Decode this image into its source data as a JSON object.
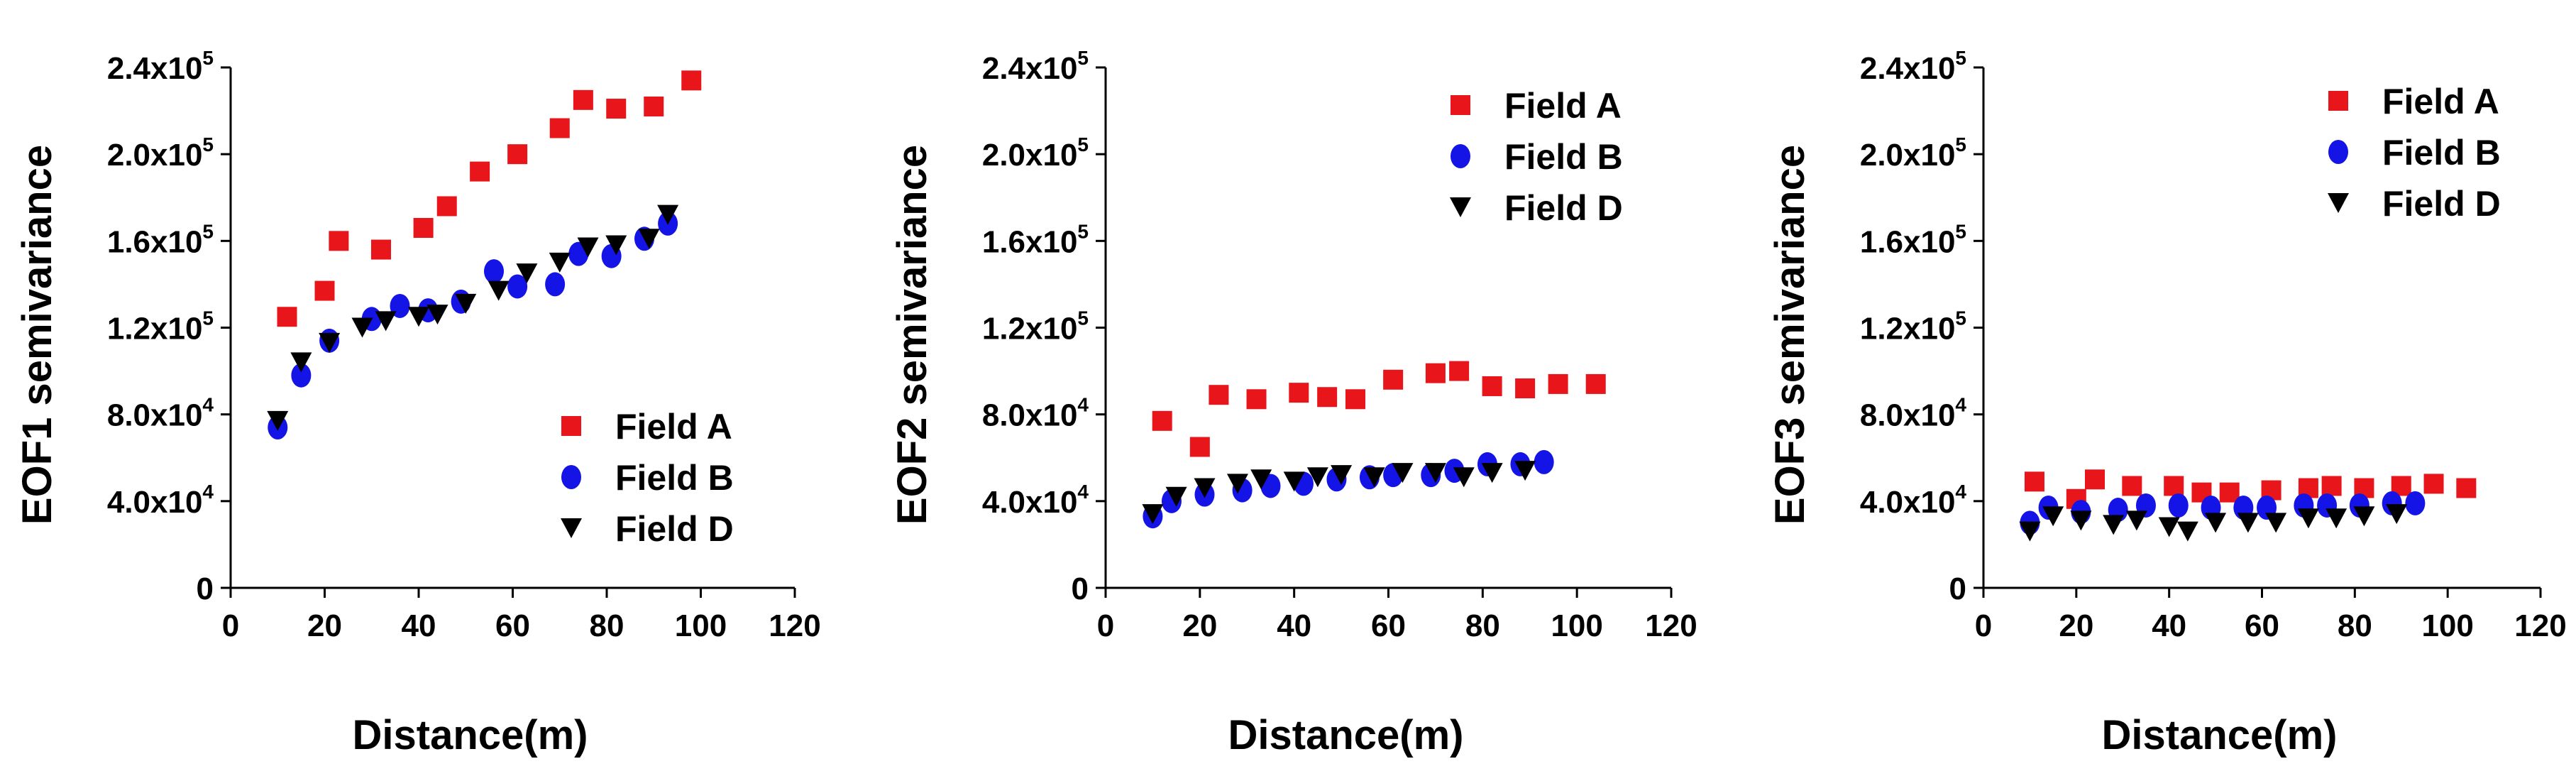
{
  "colors": {
    "field_a": "#e8161b",
    "field_b": "#1414e6",
    "field_d": "#000000",
    "axis": "#000000"
  },
  "chart_data": [
    {
      "type": "scatter",
      "xlabel": "Distance(m)",
      "ylabel": "EOF1 semivariance",
      "xlim": [
        0,
        120
      ],
      "ylim": [
        0,
        240000
      ],
      "xticks": [
        "0",
        "20",
        "40",
        "60",
        "80",
        "100",
        "120"
      ],
      "yticks": [
        {
          "base": "0",
          "exp": ""
        },
        {
          "base": "4.0x10",
          "exp": "4"
        },
        {
          "base": "8.0x10",
          "exp": "4"
        },
        {
          "base": "1.2x10",
          "exp": "5"
        },
        {
          "base": "1.6x10",
          "exp": "5"
        },
        {
          "base": "2.0x10",
          "exp": "5"
        },
        {
          "base": "2.4x10",
          "exp": "5"
        }
      ],
      "legend_position": "bottom-right",
      "series": [
        {
          "name": "Field A",
          "marker": "square",
          "color_key": "field_a",
          "x": [
            12,
            20,
            23,
            32,
            41,
            46,
            53,
            61,
            70,
            75,
            82,
            90,
            98
          ],
          "y": [
            125000,
            137000,
            160000,
            156000,
            166000,
            176000,
            192000,
            200000,
            212000,
            225000,
            221000,
            222000,
            234000
          ]
        },
        {
          "name": "Field B",
          "marker": "circle",
          "color_key": "field_b",
          "x": [
            10,
            15,
            21,
            30,
            36,
            42,
            49,
            56,
            61,
            69,
            74,
            81,
            88,
            93
          ],
          "y": [
            74000,
            98000,
            114000,
            124000,
            130000,
            128000,
            132000,
            146000,
            139000,
            140000,
            154000,
            153000,
            161000,
            168000
          ]
        },
        {
          "name": "Field D",
          "marker": "triangle-down",
          "color_key": "field_d",
          "x": [
            10,
            15,
            21,
            28,
            33,
            40,
            44,
            50,
            57,
            63,
            70,
            76,
            82,
            89,
            93
          ],
          "y": [
            77000,
            104000,
            113000,
            120000,
            123000,
            125000,
            126000,
            131000,
            137000,
            145000,
            150000,
            157000,
            158000,
            161000,
            172000
          ]
        }
      ]
    },
    {
      "type": "scatter",
      "xlabel": "Distance(m)",
      "ylabel": "EOF2 semivariance",
      "xlim": [
        0,
        120
      ],
      "ylim": [
        0,
        240000
      ],
      "xticks": [
        "0",
        "20",
        "40",
        "60",
        "80",
        "100",
        "120"
      ],
      "yticks": [
        {
          "base": "0",
          "exp": ""
        },
        {
          "base": "4.0x10",
          "exp": "4"
        },
        {
          "base": "8.0x10",
          "exp": "4"
        },
        {
          "base": "1.2x10",
          "exp": "5"
        },
        {
          "base": "1.6x10",
          "exp": "5"
        },
        {
          "base": "2.0x10",
          "exp": "5"
        },
        {
          "base": "2.4x10",
          "exp": "5"
        }
      ],
      "legend_position": "top-right",
      "series": [
        {
          "name": "Field A",
          "marker": "square",
          "color_key": "field_a",
          "x": [
            12,
            20,
            24,
            32,
            41,
            47,
            53,
            61,
            70,
            75,
            82,
            89,
            96,
            104
          ],
          "y": [
            77000,
            65000,
            89000,
            87000,
            90000,
            88000,
            87000,
            96000,
            99000,
            100000,
            93000,
            92000,
            94000,
            94000
          ]
        },
        {
          "name": "Field B",
          "marker": "circle",
          "color_key": "field_b",
          "x": [
            10,
            14,
            21,
            29,
            35,
            42,
            49,
            56,
            61,
            69,
            74,
            81,
            88,
            93
          ],
          "y": [
            33000,
            40000,
            43000,
            45000,
            47000,
            48000,
            50000,
            51000,
            52000,
            52000,
            54000,
            57000,
            57000,
            58000
          ]
        },
        {
          "name": "Field D",
          "marker": "triangle-down",
          "color_key": "field_d",
          "x": [
            10,
            15,
            21,
            28,
            33,
            40,
            45,
            50,
            57,
            63,
            70,
            76,
            82,
            89
          ],
          "y": [
            34000,
            42000,
            46000,
            48000,
            50000,
            49000,
            51000,
            52000,
            51000,
            53000,
            53000,
            51000,
            53000,
            54000
          ]
        }
      ]
    },
    {
      "type": "scatter",
      "xlabel": "Distance(m)",
      "ylabel": "EOF3 semivariance",
      "xlim": [
        0,
        120
      ],
      "ylim": [
        0,
        240000
      ],
      "xticks": [
        "0",
        "20",
        "40",
        "60",
        "80",
        "100",
        "120"
      ],
      "yticks": [
        {
          "base": "0",
          "exp": ""
        },
        {
          "base": "4.0x10",
          "exp": "4"
        },
        {
          "base": "8.0x10",
          "exp": "4"
        },
        {
          "base": "1.2x10",
          "exp": "5"
        },
        {
          "base": "1.6x10",
          "exp": "5"
        },
        {
          "base": "2.0x10",
          "exp": "5"
        },
        {
          "base": "2.4x10",
          "exp": "5"
        }
      ],
      "legend_position": "top-right",
      "series": [
        {
          "name": "Field A",
          "marker": "square",
          "color_key": "field_a",
          "x": [
            11,
            20,
            24,
            32,
            41,
            47,
            53,
            62,
            70,
            75,
            82,
            90,
            97,
            104
          ],
          "y": [
            49000,
            41000,
            50000,
            47000,
            47000,
            44000,
            44000,
            45000,
            46000,
            47000,
            46000,
            47000,
            48000,
            46000
          ]
        },
        {
          "name": "Field B",
          "marker": "circle",
          "color_key": "field_b",
          "x": [
            10,
            14,
            21,
            29,
            35,
            42,
            49,
            56,
            61,
            69,
            74,
            81,
            88,
            93
          ],
          "y": [
            30000,
            37000,
            35000,
            36000,
            38000,
            38000,
            37000,
            37000,
            37000,
            38000,
            38000,
            38000,
            39000,
            39000
          ]
        },
        {
          "name": "Field D",
          "marker": "triangle-down",
          "color_key": "field_d",
          "x": [
            10,
            15,
            21,
            28,
            33,
            40,
            44,
            50,
            57,
            63,
            70,
            76,
            82,
            89
          ],
          "y": [
            26000,
            33000,
            31000,
            29000,
            31000,
            28000,
            26000,
            30000,
            30000,
            30000,
            32000,
            32000,
            33000,
            34000
          ]
        }
      ]
    }
  ]
}
